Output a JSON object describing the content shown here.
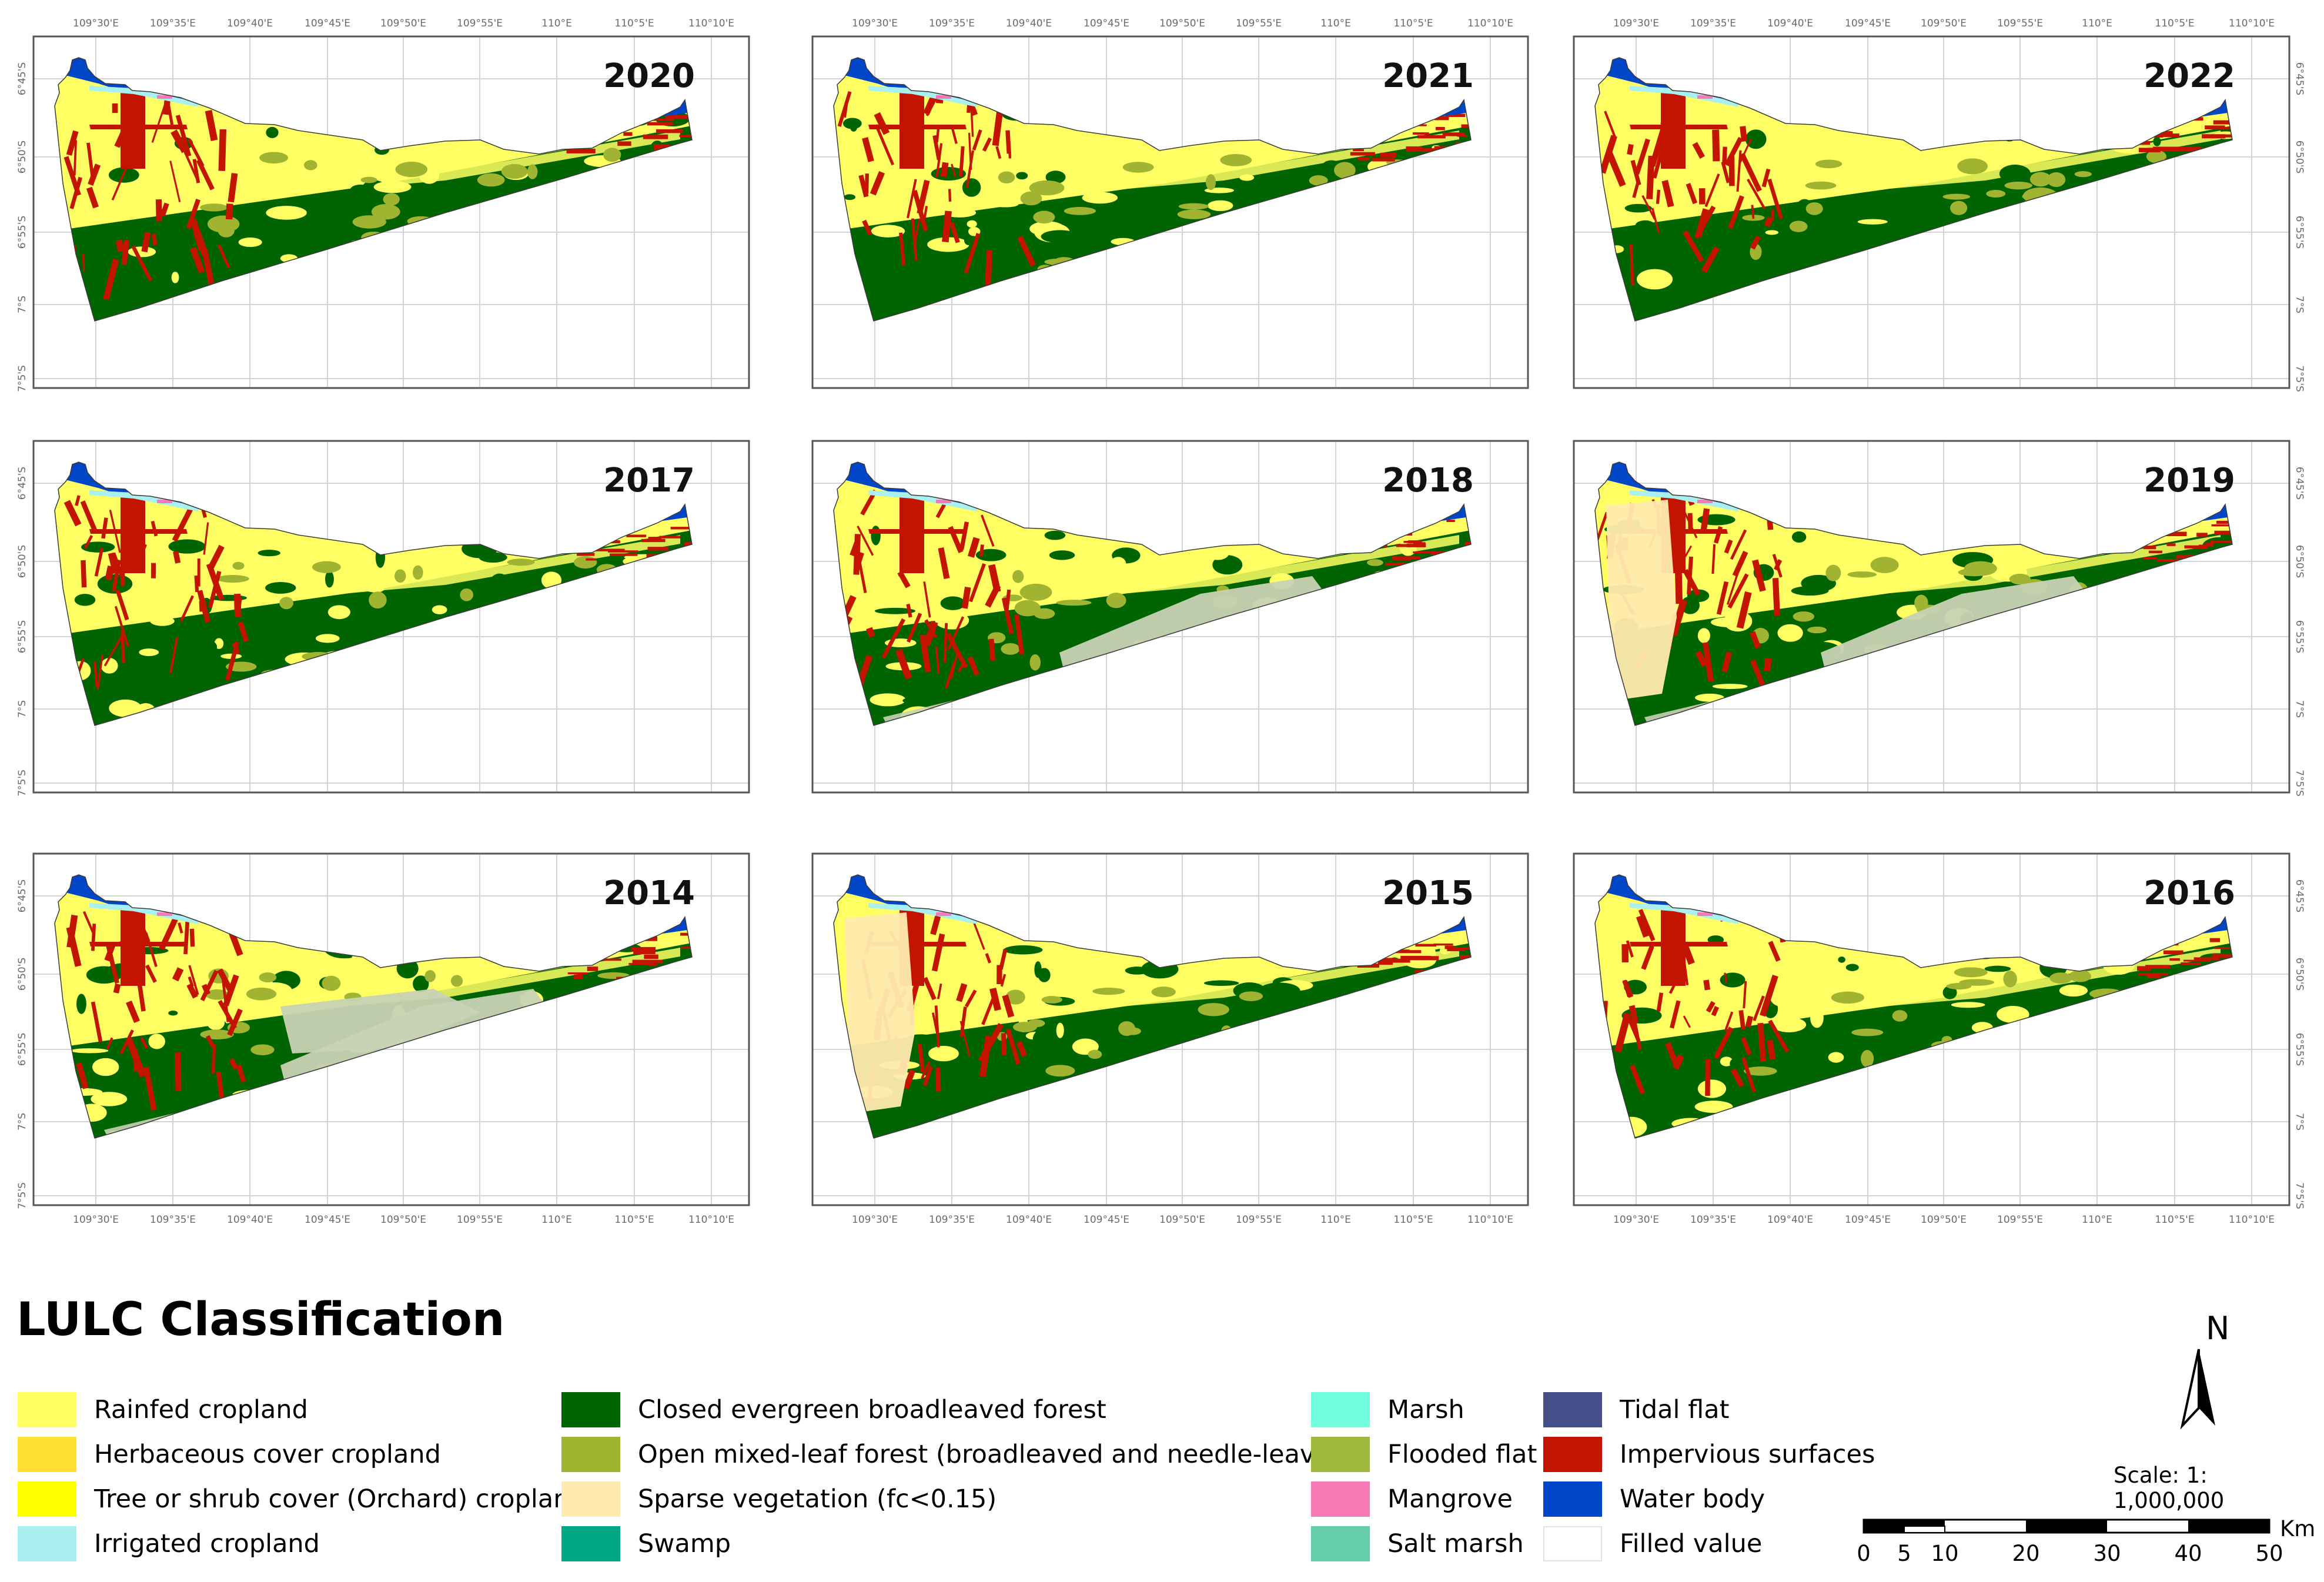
{
  "panels": [
    {
      "year": "2020",
      "variant": "normal"
    },
    {
      "year": "2021",
      "variant": "normal"
    },
    {
      "year": "2022",
      "variant": "normal"
    },
    {
      "year": "2017",
      "variant": "normal"
    },
    {
      "year": "2018",
      "variant": "sparse_east"
    },
    {
      "year": "2019",
      "variant": "sparse_both"
    },
    {
      "year": "2014",
      "variant": "sparse_center"
    },
    {
      "year": "2015",
      "variant": "sparse_west"
    },
    {
      "year": "2016",
      "variant": "normal"
    }
  ],
  "lon_ticks": [
    "109°30'E",
    "109°35'E",
    "109°40'E",
    "109°45'E",
    "109°50'E",
    "109°55'E",
    "110°E",
    "110°5'E",
    "110°10'E"
  ],
  "lat_ticks": [
    "6°45'S",
    "6°50'S",
    "6°55'S",
    "7°S",
    "7°5'S"
  ],
  "legend": {
    "title": "LULC Classification",
    "columns": [
      [
        {
          "label": "Rainfed cropland",
          "color": "#ffff64"
        },
        {
          "label": "Herbaceous cover cropland",
          "color": "#ffe033"
        },
        {
          "label": "Tree or shrub cover (Orchard) cropland",
          "color": "#ffff00"
        },
        {
          "label": "Irrigated cropland",
          "color": "#aaf0f0"
        }
      ],
      [
        {
          "label": "Closed evergreen broadleaved forest",
          "color": "#006400"
        },
        {
          "label": "Open mixed-leaf forest (broadleaved and needle-leaved)",
          "color": "#a0b432"
        },
        {
          "label": "Sparse vegetation (fc<0.15)",
          "color": "#ffebaf"
        },
        {
          "label": "Swamp",
          "color": "#00a884"
        }
      ],
      [
        {
          "label": "Marsh",
          "color": "#73ffdf"
        },
        {
          "label": "Flooded flat",
          "color": "#9eb93c"
        },
        {
          "label": "Mangrove",
          "color": "#f57ab6"
        },
        {
          "label": "Salt marsh",
          "color": "#66cdab"
        }
      ],
      [
        {
          "label": "Tidal flat",
          "color": "#444f89"
        },
        {
          "label": "Impervious surfaces",
          "color": "#c31400"
        },
        {
          "label": "Water body",
          "color": "#0046c8"
        },
        {
          "label": "Filled value",
          "color": "#ffffff"
        }
      ]
    ]
  },
  "north_arrow": {
    "label": "N"
  },
  "scale": {
    "text": "Scale: 1: 1,000,000",
    "unit": "Km",
    "ticks": [
      "0",
      "5",
      "10",
      "20",
      "30",
      "40",
      "50"
    ],
    "tick_values": [
      0,
      5,
      10,
      20,
      30,
      40,
      50
    ]
  }
}
